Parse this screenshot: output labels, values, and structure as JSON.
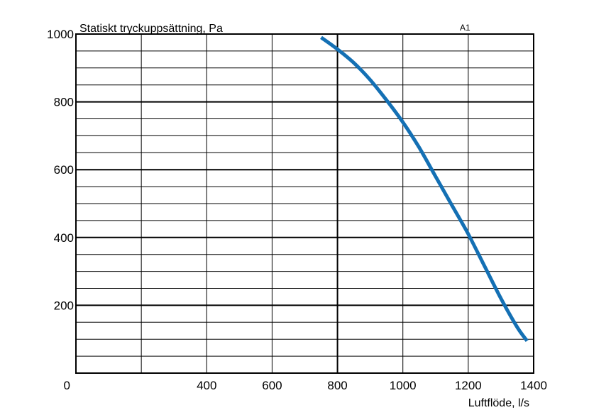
{
  "chart_data": {
    "type": "line",
    "title": "Statiskt tryckuppsättning, Pa",
    "curve_label": "A1",
    "xlabel": "Luftflöde, l/s",
    "ylabel": "",
    "xlim": [
      0,
      1400
    ],
    "ylim": [
      0,
      1000
    ],
    "x_ticks": [
      0,
      400,
      600,
      800,
      1000,
      1200,
      1400
    ],
    "y_ticks": [
      200,
      400,
      600,
      800,
      1000
    ],
    "x_minor_step": 200,
    "y_minor_step": 50,
    "grid": true,
    "series": [
      {
        "color": "#1470b4",
        "x": [
          750,
          800,
          850,
          900,
          950,
          1000,
          1050,
          1100,
          1150,
          1200,
          1250,
          1300,
          1350,
          1380
        ],
        "y": [
          990,
          955,
          915,
          865,
          805,
          740,
          665,
          580,
          495,
          410,
          315,
          220,
          135,
          95
        ]
      }
    ]
  }
}
